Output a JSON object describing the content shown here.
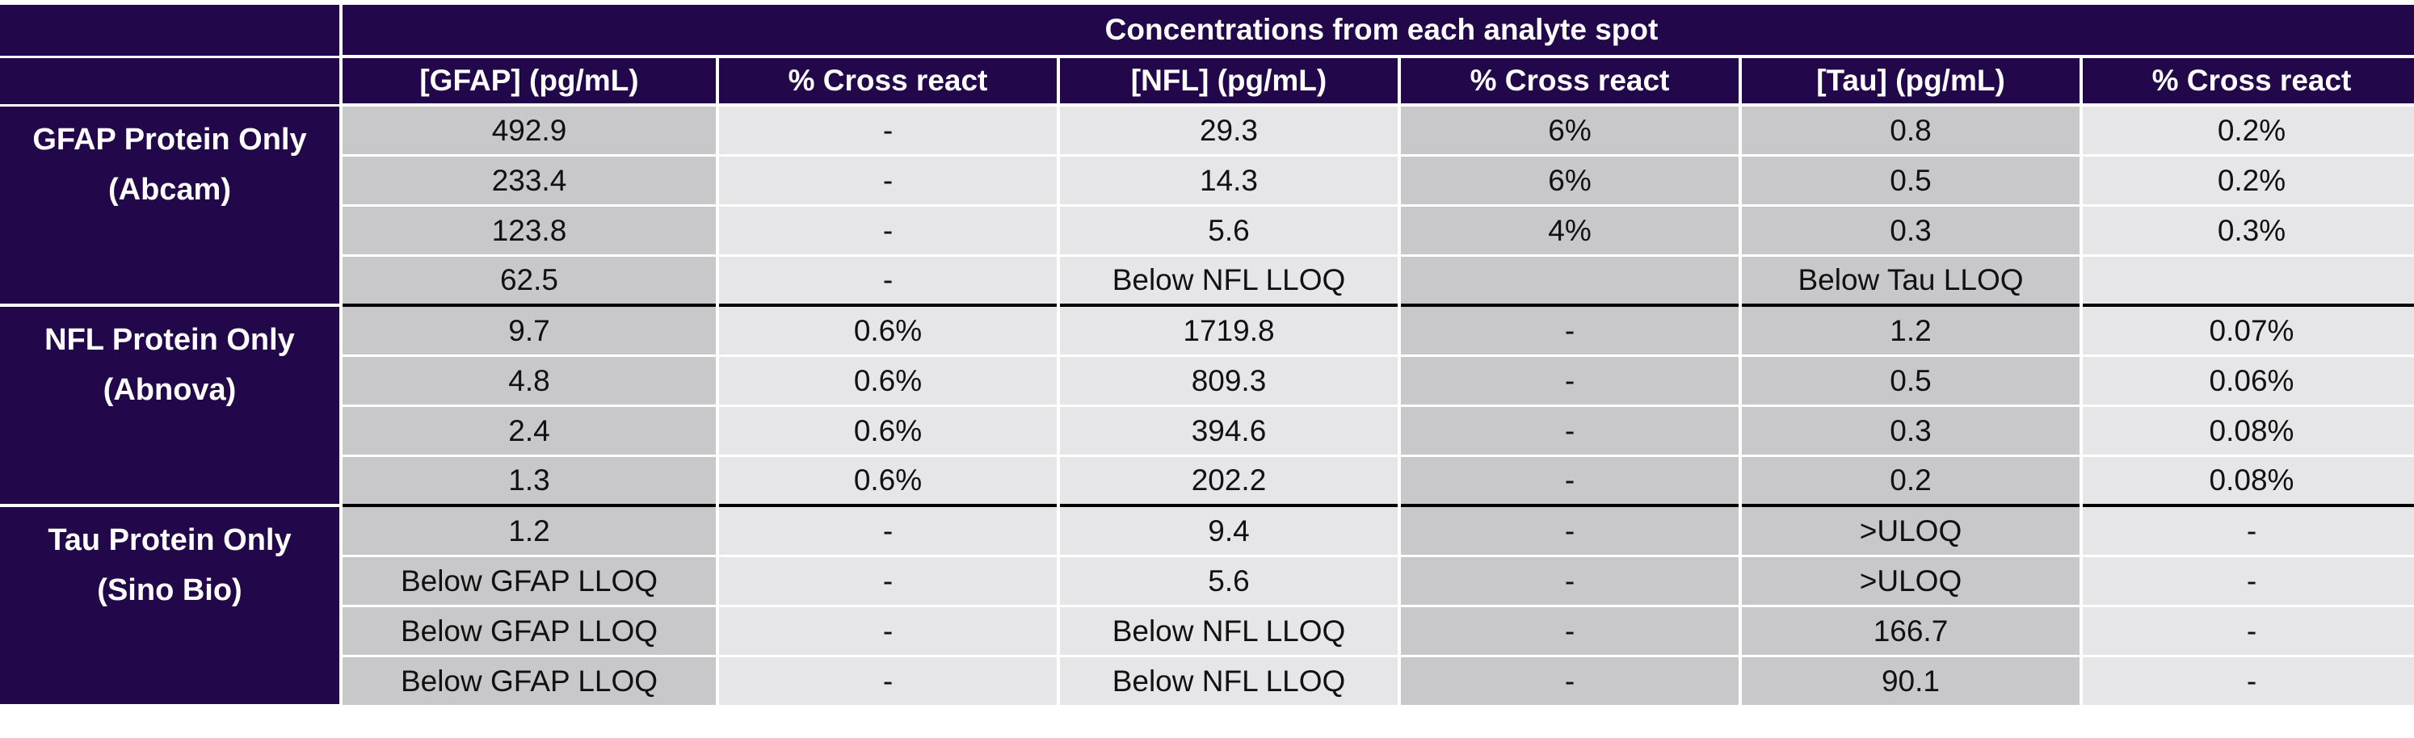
{
  "title": "Concentrations from each analyte spot",
  "columns": [
    "[GFAP] (pg/mL)",
    "% Cross react",
    "[NFL] (pg/mL)",
    "% Cross react",
    "[Tau] (pg/mL)",
    "% Cross react"
  ],
  "groups": [
    {
      "label_line1": "GFAP Protein Only",
      "label_line2": "(Abcam)",
      "rows": [
        [
          "492.9",
          "-",
          "29.3",
          "6%",
          "0.8",
          "0.2%"
        ],
        [
          "233.4",
          "-",
          "14.3",
          "6%",
          "0.5",
          "0.2%"
        ],
        [
          "123.8",
          "-",
          "5.6",
          "4%",
          "0.3",
          "0.3%"
        ],
        [
          "62.5",
          "-",
          "Below NFL LLOQ",
          "",
          "Below Tau LLOQ",
          ""
        ]
      ]
    },
    {
      "label_line1": "NFL Protein Only",
      "label_line2": "(Abnova)",
      "rows": [
        [
          "9.7",
          "0.6%",
          "1719.8",
          "-",
          "1.2",
          "0.07%"
        ],
        [
          "4.8",
          "0.6%",
          "809.3",
          "-",
          "0.5",
          "0.06%"
        ],
        [
          "2.4",
          "0.6%",
          "394.6",
          "-",
          "0.3",
          "0.08%"
        ],
        [
          "1.3",
          "0.6%",
          "202.2",
          "-",
          "0.2",
          "0.08%"
        ]
      ]
    },
    {
      "label_line1": "Tau Protein Only",
      "label_line2": "(Sino Bio)",
      "rows": [
        [
          "1.2",
          "-",
          "9.4",
          "-",
          ">ULOQ",
          "-"
        ],
        [
          "Below GFAP LLOQ",
          "-",
          "5.6",
          "-",
          ">ULOQ",
          "-"
        ],
        [
          "Below GFAP LLOQ",
          "-",
          "Below NFL LLOQ",
          "-",
          "166.7",
          "-"
        ],
        [
          "Below GFAP LLOQ",
          "-",
          "Below NFL LLOQ",
          "-",
          "90.1",
          "-"
        ]
      ]
    }
  ],
  "colors": {
    "header_bg": "#22084a",
    "header_text": "#ffffff",
    "value_dark": "#c8c8ca",
    "value_light": "#e6e6e8",
    "group_divider": "#000000"
  }
}
